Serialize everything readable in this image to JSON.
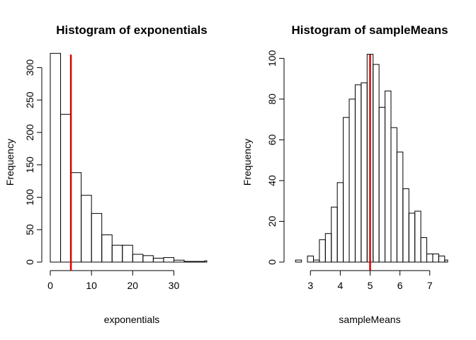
{
  "chart_data": [
    {
      "type": "bar",
      "title": "Histogram of exponentials",
      "xlabel": "exponentials",
      "ylabel": "Frequency",
      "xlim": [
        0,
        38
      ],
      "ylim": [
        0,
        330
      ],
      "bins": [
        {
          "x0": 0,
          "x1": 2.5,
          "count": 322
        },
        {
          "x0": 2.5,
          "x1": 5,
          "count": 228
        },
        {
          "x0": 5,
          "x1": 7.5,
          "count": 138
        },
        {
          "x0": 7.5,
          "x1": 10,
          "count": 103
        },
        {
          "x0": 10,
          "x1": 12.5,
          "count": 75
        },
        {
          "x0": 12.5,
          "x1": 15,
          "count": 42
        },
        {
          "x0": 15,
          "x1": 17.5,
          "count": 26
        },
        {
          "x0": 17.5,
          "x1": 20,
          "count": 26
        },
        {
          "x0": 20,
          "x1": 22.5,
          "count": 12
        },
        {
          "x0": 22.5,
          "x1": 25,
          "count": 10
        },
        {
          "x0": 25,
          "x1": 27.5,
          "count": 6
        },
        {
          "x0": 27.5,
          "x1": 30,
          "count": 7
        },
        {
          "x0": 30,
          "x1": 32.5,
          "count": 3
        },
        {
          "x0": 32.5,
          "x1": 35,
          "count": 1
        },
        {
          "x0": 35,
          "x1": 37.5,
          "count": 1
        },
        {
          "x0": 37.5,
          "x1": 40,
          "count": 2
        }
      ],
      "vline": 5,
      "vline_color": "#dd0000",
      "xticks": [
        0,
        10,
        20,
        30
      ],
      "yticks": [
        0,
        50,
        100,
        150,
        200,
        250,
        300
      ]
    },
    {
      "type": "bar",
      "title": "Histogram of sampleMeans",
      "xlabel": "sampleMeans",
      "ylabel": "Frequency",
      "xlim": [
        2.4,
        7.6
      ],
      "ylim": [
        0,
        105
      ],
      "bins": [
        {
          "x0": 2.5,
          "x1": 2.7,
          "count": 1
        },
        {
          "x0": 2.7,
          "x1": 2.9,
          "count": 0
        },
        {
          "x0": 2.9,
          "x1": 3.1,
          "count": 3
        },
        {
          "x0": 3.1,
          "x1": 3.3,
          "count": 1
        },
        {
          "x0": 3.3,
          "x1": 3.5,
          "count": 11
        },
        {
          "x0": 3.5,
          "x1": 3.7,
          "count": 14
        },
        {
          "x0": 3.7,
          "x1": 3.9,
          "count": 27
        },
        {
          "x0": 3.9,
          "x1": 4.1,
          "count": 39
        },
        {
          "x0": 4.1,
          "x1": 4.3,
          "count": 71
        },
        {
          "x0": 4.3,
          "x1": 4.5,
          "count": 80
        },
        {
          "x0": 4.5,
          "x1": 4.7,
          "count": 87
        },
        {
          "x0": 4.7,
          "x1": 4.9,
          "count": 88
        },
        {
          "x0": 4.9,
          "x1": 5.1,
          "count": 102
        },
        {
          "x0": 5.1,
          "x1": 5.3,
          "count": 97
        },
        {
          "x0": 5.3,
          "x1": 5.5,
          "count": 76
        },
        {
          "x0": 5.5,
          "x1": 5.7,
          "count": 84
        },
        {
          "x0": 5.7,
          "x1": 5.9,
          "count": 66
        },
        {
          "x0": 5.9,
          "x1": 6.1,
          "count": 54
        },
        {
          "x0": 6.1,
          "x1": 6.3,
          "count": 36
        },
        {
          "x0": 6.3,
          "x1": 6.5,
          "count": 24
        },
        {
          "x0": 6.5,
          "x1": 6.7,
          "count": 25
        },
        {
          "x0": 6.7,
          "x1": 6.9,
          "count": 12
        },
        {
          "x0": 6.9,
          "x1": 7.1,
          "count": 4
        },
        {
          "x0": 7.1,
          "x1": 7.3,
          "count": 4
        },
        {
          "x0": 7.3,
          "x1": 7.5,
          "count": 3
        },
        {
          "x0": 7.5,
          "x1": 7.7,
          "count": 1
        }
      ],
      "vline": 5,
      "vline_color": "#dd0000",
      "xticks": [
        3,
        4,
        5,
        6,
        7
      ],
      "yticks": [
        0,
        20,
        40,
        60,
        80,
        100
      ]
    }
  ]
}
